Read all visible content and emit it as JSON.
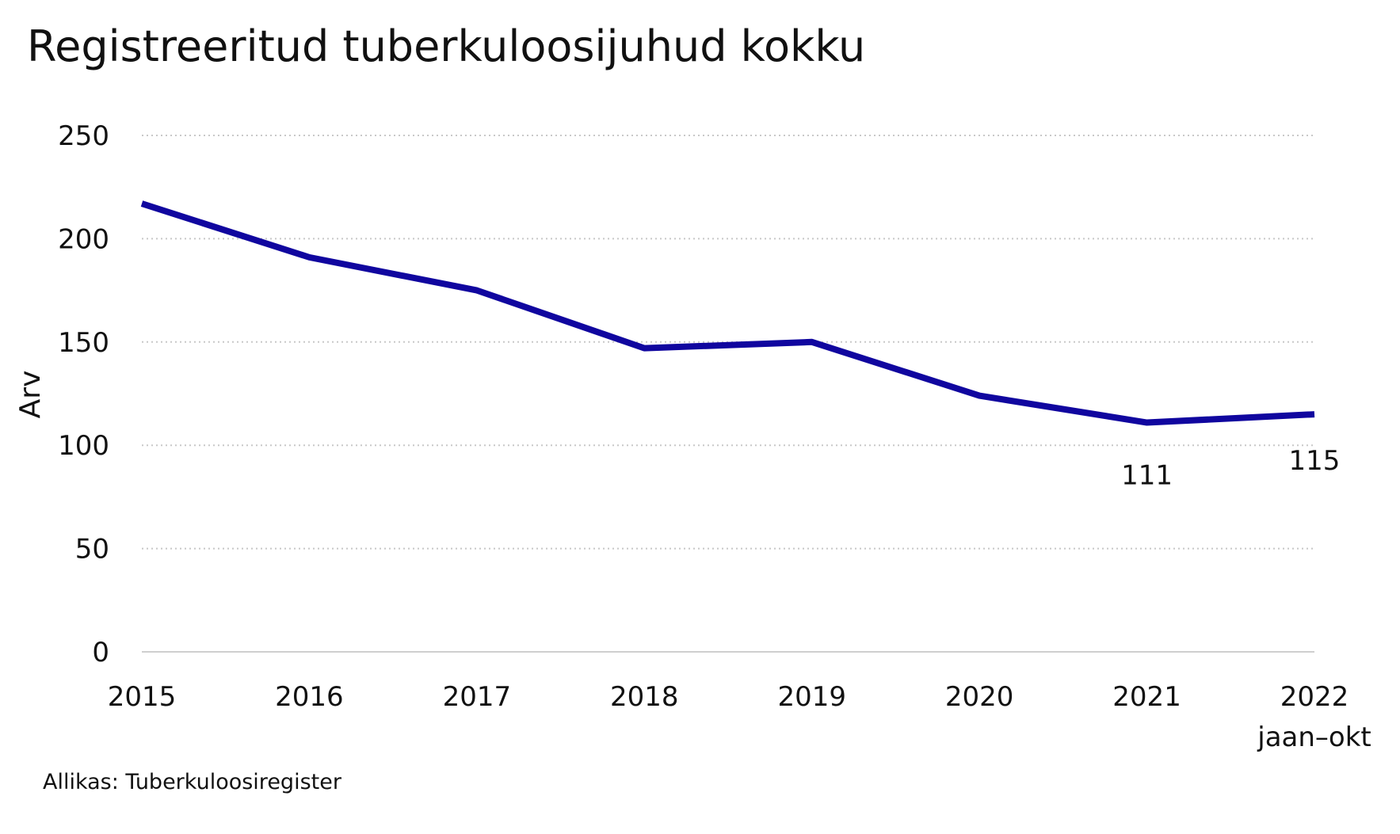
{
  "chart_data": {
    "type": "line",
    "title": "Registreeritud tuberkuloosijuhud kokku",
    "ylabel": "Arv",
    "xlabel": "",
    "categories": [
      "2015",
      "2016",
      "2017",
      "2018",
      "2019",
      "2020",
      "2021",
      "2022"
    ],
    "category_sublabels": [
      "",
      "",
      "",
      "",
      "",
      "",
      "",
      "jaan–okt"
    ],
    "series": [
      {
        "values": [
          217,
          191,
          175,
          147,
          150,
          124,
          111,
          115
        ],
        "color": "#10069F"
      }
    ],
    "data_labels": [
      {
        "index": 6,
        "text": "111"
      },
      {
        "index": 7,
        "text": "115"
      }
    ],
    "ylim": [
      0,
      250
    ],
    "yticks": [
      "0",
      "50",
      "100",
      "150",
      "200",
      "250"
    ],
    "grid": "horizontal dotted",
    "legend": "none",
    "source": "Allikas: Tuberkuloosiregister"
  }
}
